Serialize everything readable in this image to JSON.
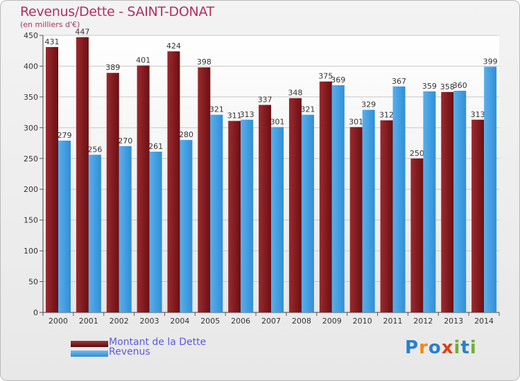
{
  "colors": {
    "dette": "#6b0f13",
    "dette_light": "#9a2a2e",
    "revenus": "#2f8fd8",
    "revenus_light": "#5aaeea"
  },
  "legend": {
    "dette_label": "Montant de la Dette",
    "revenus_label": "Revenus"
  },
  "logo": {
    "text": "Proxiti",
    "letters": [
      "P",
      "r",
      "o",
      "x",
      "i",
      "t",
      "i"
    ],
    "letter_colors": [
      "#2a7fd0",
      "#f08a12",
      "#2a7fd0",
      "#e04010",
      "#70b030",
      "#2a7fd0",
      "#70b030"
    ]
  },
  "chart_data": {
    "type": "bar",
    "title": "Revenus/Dette - SAINT-DONAT",
    "subtitle": "(en milliers d'€)",
    "categories": [
      "2000",
      "2001",
      "2002",
      "2003",
      "2004",
      "2005",
      "2006",
      "2007",
      "2008",
      "2009",
      "2010",
      "2011",
      "2012",
      "2013",
      "2014"
    ],
    "series": [
      {
        "name": "Montant de la Dette",
        "values": [
          431,
          447,
          389,
          401,
          424,
          398,
          311,
          337,
          348,
          375,
          301,
          312,
          250,
          358,
          313
        ]
      },
      {
        "name": "Revenus",
        "values": [
          279,
          256,
          270,
          261,
          280,
          321,
          313,
          301,
          321,
          369,
          329,
          367,
          359,
          360,
          399
        ]
      }
    ],
    "ylim": [
      0,
      450
    ],
    "yticks": [
      0,
      50,
      100,
      150,
      200,
      250,
      300,
      350,
      400,
      450
    ],
    "grid": true,
    "legend_position": "bottom-left"
  }
}
